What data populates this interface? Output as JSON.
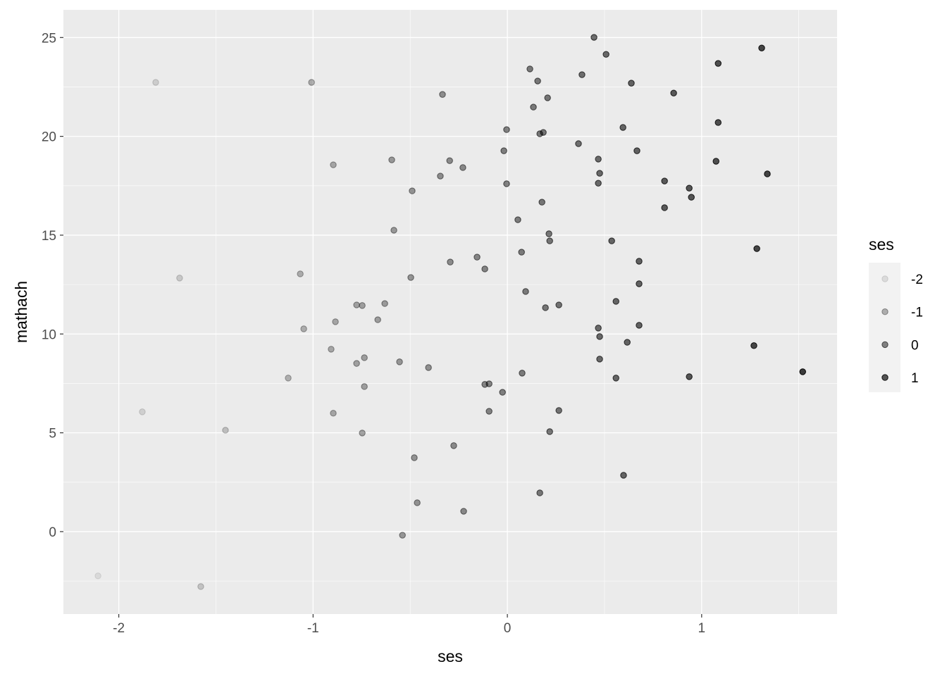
{
  "chart_data": {
    "type": "scatter",
    "title": "",
    "xlabel": "ses",
    "ylabel": "mathach",
    "xlim": [
      -2.285,
      1.697
    ],
    "ylim": [
      -4.17,
      26.4
    ],
    "x_ticks": [
      -2,
      -1,
      0,
      1
    ],
    "y_ticks": [
      0,
      5,
      10,
      15,
      20,
      25
    ],
    "grid": true,
    "point_color": "#000000",
    "panel_background": "#ebebeb",
    "alpha_mapped_to": "ses",
    "legend": {
      "title": "ses",
      "position": "right",
      "labels": [
        "-2",
        "-1",
        "0",
        "1"
      ],
      "values": [
        -2,
        -1,
        0,
        1
      ]
    },
    "points": [
      [
        -2.107,
        -2.24
      ],
      [
        -1.879,
        6.06
      ],
      [
        -1.81,
        22.73
      ],
      [
        -1.687,
        12.83
      ],
      [
        -1.578,
        -2.78
      ],
      [
        -1.451,
        5.13
      ],
      [
        -1.128,
        7.77
      ],
      [
        -1.066,
        13.04
      ],
      [
        -1.048,
        10.26
      ],
      [
        -1.008,
        22.73
      ],
      [
        -0.907,
        9.23
      ],
      [
        -0.896,
        18.56
      ],
      [
        -0.896,
        5.99
      ],
      [
        -0.885,
        10.62
      ],
      [
        -0.776,
        8.51
      ],
      [
        -0.776,
        11.47
      ],
      [
        -0.747,
        11.44
      ],
      [
        -0.747,
        4.99
      ],
      [
        -0.736,
        8.8
      ],
      [
        -0.736,
        7.34
      ],
      [
        -0.667,
        10.72
      ],
      [
        -0.631,
        11.54
      ],
      [
        -0.595,
        18.81
      ],
      [
        -0.584,
        15.25
      ],
      [
        -0.555,
        8.59
      ],
      [
        -0.54,
        -0.18
      ],
      [
        -0.497,
        12.86
      ],
      [
        -0.49,
        17.24
      ],
      [
        -0.479,
        3.74
      ],
      [
        -0.464,
        1.46
      ],
      [
        -0.406,
        8.3
      ],
      [
        -0.345,
        17.99
      ],
      [
        -0.334,
        22.12
      ],
      [
        -0.297,
        18.77
      ],
      [
        -0.294,
        13.64
      ],
      [
        -0.276,
        4.35
      ],
      [
        -0.229,
        18.42
      ],
      [
        -0.225,
        1.03
      ],
      [
        -0.156,
        13.89
      ],
      [
        -0.116,
        13.29
      ],
      [
        -0.116,
        7.45
      ],
      [
        -0.094,
        7.48
      ],
      [
        -0.094,
        6.09
      ],
      [
        -0.025,
        7.05
      ],
      [
        -0.018,
        19.27
      ],
      [
        -0.004,
        20.34
      ],
      [
        -0.004,
        17.6
      ],
      [
        0.054,
        15.78
      ],
      [
        0.073,
        14.14
      ],
      [
        0.076,
        8.02
      ],
      [
        0.094,
        12.15
      ],
      [
        0.116,
        23.41
      ],
      [
        0.134,
        21.48
      ],
      [
        0.156,
        22.8
      ],
      [
        0.167,
        20.13
      ],
      [
        0.167,
        1.96
      ],
      [
        0.178,
        16.67
      ],
      [
        0.185,
        20.2
      ],
      [
        0.196,
        11.33
      ],
      [
        0.207,
        21.95
      ],
      [
        0.214,
        15.07
      ],
      [
        0.218,
        14.71
      ],
      [
        0.218,
        5.06
      ],
      [
        0.265,
        11.47
      ],
      [
        0.265,
        6.13
      ],
      [
        0.366,
        19.63
      ],
      [
        0.384,
        23.12
      ],
      [
        0.446,
        25.01
      ],
      [
        0.468,
        18.85
      ],
      [
        0.468,
        17.63
      ],
      [
        0.468,
        10.3
      ],
      [
        0.475,
        18.13
      ],
      [
        0.475,
        9.87
      ],
      [
        0.475,
        8.73
      ],
      [
        0.508,
        24.15
      ],
      [
        0.537,
        14.71
      ],
      [
        0.559,
        11.65
      ],
      [
        0.559,
        7.77
      ],
      [
        0.595,
        20.45
      ],
      [
        0.598,
        2.85
      ],
      [
        0.617,
        9.58
      ],
      [
        0.638,
        22.69
      ],
      [
        0.667,
        19.27
      ],
      [
        0.678,
        13.68
      ],
      [
        0.678,
        12.54
      ],
      [
        0.678,
        10.44
      ],
      [
        0.809,
        17.74
      ],
      [
        0.809,
        16.39
      ],
      [
        0.856,
        22.19
      ],
      [
        0.936,
        17.38
      ],
      [
        0.936,
        7.84
      ],
      [
        0.947,
        16.92
      ],
      [
        1.074,
        18.74
      ],
      [
        1.085,
        23.69
      ],
      [
        1.085,
        20.7
      ],
      [
        1.269,
        9.41
      ],
      [
        1.284,
        14.32
      ],
      [
        1.309,
        24.47
      ],
      [
        1.338,
        18.1
      ],
      [
        1.52,
        8.09
      ]
    ]
  }
}
